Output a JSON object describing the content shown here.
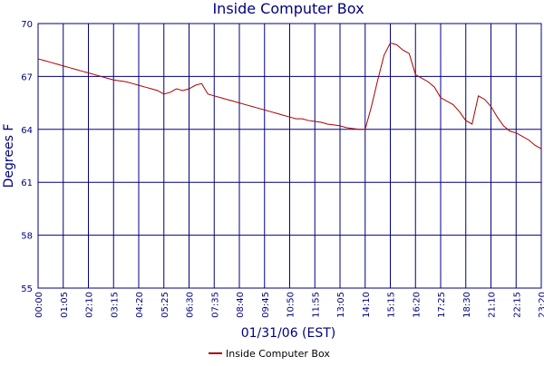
{
  "chart_data": {
    "type": "line",
    "title": "Inside Computer Box",
    "x_label": "01/31/06 (EST)",
    "y_label": "Degrees F",
    "categories": [
      "00:00",
      null,
      null,
      null,
      "01:05",
      null,
      null,
      null,
      "02:10",
      null,
      null,
      null,
      "03:15",
      null,
      null,
      null,
      "04:20",
      null,
      null,
      null,
      "05:25",
      null,
      null,
      null,
      "06:30",
      null,
      null,
      null,
      "07:35",
      null,
      null,
      null,
      "08:40",
      null,
      null,
      null,
      "09:45",
      null,
      null,
      null,
      "10:50",
      null,
      null,
      null,
      "11:55",
      null,
      null,
      null,
      "13:05",
      null,
      null,
      null,
      "14:10",
      null,
      null,
      null,
      "15:15",
      null,
      null,
      null,
      "16:20",
      null,
      null,
      null,
      "17:25",
      null,
      null,
      null,
      "18:30",
      null,
      null,
      null,
      "21:10",
      null,
      null,
      null,
      "22:15",
      null,
      null,
      null,
      "23:20"
    ],
    "series": [
      {
        "name": "Inside Computer Box",
        "color": "#aa0000",
        "values": [
          68.0,
          67.9,
          67.8,
          67.7,
          67.6,
          67.5,
          67.4,
          67.3,
          67.2,
          67.1,
          67.0,
          66.9,
          66.8,
          66.75,
          66.7,
          66.6,
          66.5,
          66.4,
          66.3,
          66.2,
          66.0,
          66.1,
          66.3,
          66.2,
          66.3,
          66.5,
          66.6,
          66.0,
          65.9,
          65.8,
          65.7,
          65.6,
          65.5,
          65.4,
          65.3,
          65.2,
          65.1,
          65.0,
          64.9,
          64.8,
          64.7,
          64.6,
          64.6,
          64.5,
          64.45,
          64.4,
          64.3,
          64.25,
          64.2,
          64.1,
          64.05,
          64.0,
          64.0,
          65.3,
          66.8,
          68.2,
          68.9,
          68.8,
          68.5,
          68.3,
          67.1,
          66.9,
          66.7,
          66.4,
          65.8,
          65.6,
          65.4,
          65.0,
          64.5,
          64.3,
          65.9,
          65.7,
          65.3,
          64.7,
          64.2,
          63.9,
          63.8,
          63.6,
          63.4,
          63.1,
          62.9
        ]
      }
    ],
    "ylim": [
      55,
      70
    ],
    "yticks": [
      55,
      58,
      61,
      64,
      67,
      70
    ],
    "grid": true,
    "legend": "bottom"
  }
}
